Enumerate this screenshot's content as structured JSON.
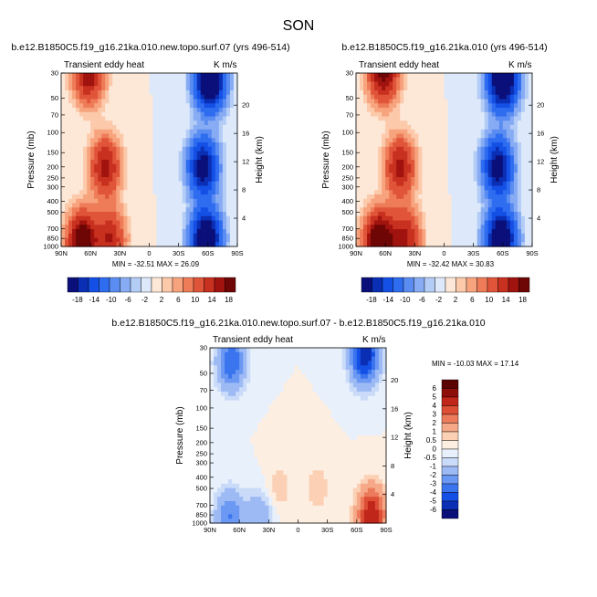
{
  "season": "SON",
  "chart_data": [
    {
      "type": "heatmap",
      "id": "panel-1",
      "title": "b.e12.B1850C5.f19_g16.21ka.010.new.topo.surf.07 (yrs 496-514)",
      "left_label": "Transient eddy heat",
      "units": "K m/s",
      "xlabel": "",
      "ylabel": "Pressure (mb)",
      "y2label": "Height (km)",
      "x_ticks": [
        "90N",
        "60N",
        "30N",
        "0",
        "30S",
        "60S",
        "90S"
      ],
      "y_ticks": [
        "30",
        "50",
        "70",
        "100",
        "150",
        "200",
        "250",
        "300",
        "400",
        "500",
        "700",
        "850",
        "1000"
      ],
      "y2_ticks": [
        "20",
        "16",
        "12",
        "8",
        "4"
      ],
      "stats": "MIN = -32.51   MAX = 26.09",
      "colorbar_ticks": [
        "-18",
        "-14",
        "-10",
        "-6",
        "-2",
        "2",
        "6",
        "10",
        "14",
        "18"
      ],
      "features": [
        {
          "lat": 62,
          "p": 30,
          "v": 18
        },
        {
          "lat": 68,
          "p": 900,
          "v": 24
        },
        {
          "lat": 45,
          "p": 200,
          "v": 16
        },
        {
          "lat": 40,
          "p": 850,
          "v": 14
        },
        {
          "lat": -62,
          "p": 35,
          "v": -30
        },
        {
          "lat": -55,
          "p": 200,
          "v": -22
        },
        {
          "lat": -58,
          "p": 850,
          "v": -28
        }
      ]
    },
    {
      "type": "heatmap",
      "id": "panel-2",
      "title": "b.e12.B1850C5.f19_g16.21ka.010 (yrs 496-514)",
      "left_label": "Transient eddy heat",
      "units": "K m/s",
      "xlabel": "",
      "ylabel": "Pressure (mb)",
      "y2label": "Height (km)",
      "x_ticks": [
        "90N",
        "60N",
        "30N",
        "0",
        "30S",
        "60S",
        "90S"
      ],
      "y_ticks": [
        "30",
        "50",
        "70",
        "100",
        "150",
        "200",
        "250",
        "300",
        "400",
        "500",
        "700",
        "850",
        "1000"
      ],
      "y2_ticks": [
        "20",
        "16",
        "12",
        "8",
        "4"
      ],
      "stats": "MIN = -32.42   MAX = 30.83",
      "colorbar_ticks": [
        "-18",
        "-14",
        "-10",
        "-6",
        "-2",
        "2",
        "6",
        "10",
        "14",
        "18"
      ],
      "features": [
        {
          "lat": 62,
          "p": 30,
          "v": 20
        },
        {
          "lat": 66,
          "p": 900,
          "v": 28
        },
        {
          "lat": 45,
          "p": 200,
          "v": 16
        },
        {
          "lat": 40,
          "p": 850,
          "v": 15
        },
        {
          "lat": -60,
          "p": 35,
          "v": -30
        },
        {
          "lat": -55,
          "p": 200,
          "v": -22
        },
        {
          "lat": -58,
          "p": 850,
          "v": -28
        }
      ]
    },
    {
      "type": "heatmap",
      "id": "panel-3",
      "title": "b.e12.B1850C5.f19_g16.21ka.010.new.topo.surf.07 - b.e12.B1850C5.f19_g16.21ka.010",
      "left_label": "Transient eddy heat",
      "units": "K m/s",
      "xlabel": "",
      "ylabel": "Pressure (mb)",
      "y2label": "Height (km)",
      "x_ticks": [
        "90N",
        "60N",
        "30N",
        "0",
        "30S",
        "60S",
        "90S"
      ],
      "y_ticks": [
        "30",
        "50",
        "70",
        "100",
        "150",
        "200",
        "250",
        "300",
        "400",
        "500",
        "700",
        "850",
        "1000"
      ],
      "y2_ticks": [
        "20",
        "16",
        "12",
        "8",
        "4"
      ],
      "stats": "MIN = -10.03   MAX = 17.14",
      "colorbar_ticks": [
        "6",
        "5",
        "4",
        "3",
        "2",
        "1",
        "0.5",
        "0",
        "-0.5",
        "-1",
        "-2",
        "-3",
        "-4",
        "-5",
        "-6"
      ],
      "features": [
        {
          "lat": 68,
          "p": 40,
          "v": -4
        },
        {
          "lat": -68,
          "p": 35,
          "v": -6
        },
        {
          "lat": 70,
          "p": 900,
          "v": -3
        },
        {
          "lat": -75,
          "p": 850,
          "v": 5
        },
        {
          "lat": 40,
          "p": 900,
          "v": -2
        },
        {
          "lat": 20,
          "p": 500,
          "v": 0.8
        },
        {
          "lat": -20,
          "p": 500,
          "v": 0.8
        }
      ]
    }
  ],
  "colors": {
    "full": [
      "#0a0f7a",
      "#0a2fb4",
      "#1450e6",
      "#2e6cf0",
      "#5a8cf2",
      "#88acf4",
      "#b4cdf6",
      "#dde9fa",
      "#fde8d8",
      "#fcc9aa",
      "#f7a47e",
      "#ee7c58",
      "#e0553a",
      "#c8301f",
      "#a0130e",
      "#6e0605"
    ],
    "diff": [
      "#0a0f7a",
      "#0a2fb4",
      "#1450e6",
      "#3a74ee",
      "#6b98f2",
      "#9dbaf5",
      "#c9dbf8",
      "#e8f0fb",
      "#fdeee2",
      "#fbd0b5",
      "#f6a988",
      "#ec7b5c",
      "#dc4e36",
      "#c0261a",
      "#8e0e0a",
      "#5a0303"
    ]
  }
}
